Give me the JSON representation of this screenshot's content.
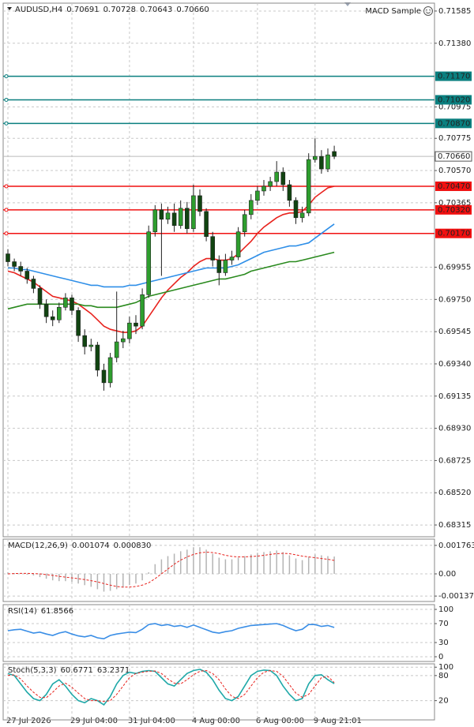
{
  "chart_data": [
    {
      "type": "candlestick",
      "symbol": "AUDUSD,H4",
      "readout": [
        "0.70691",
        "0.70728",
        "0.70643",
        "0.70660"
      ],
      "expert": "MACD Sample",
      "categories": [
        "27 Jul 2026",
        null,
        null,
        null,
        null,
        null,
        null,
        null,
        null,
        null,
        "29 Jul 04:00",
        null,
        null,
        null,
        null,
        null,
        null,
        null,
        null,
        "31 Jul 04:00",
        null,
        null,
        null,
        null,
        null,
        null,
        null,
        null,
        null,
        "4 Aug 00:00",
        null,
        null,
        null,
        null,
        null,
        null,
        null,
        null,
        null,
        "6 Aug 00:00",
        null,
        null,
        null,
        null,
        null,
        null,
        null,
        null,
        "9 Aug 21:01",
        null,
        null,
        null
      ],
      "open": [
        0.7004,
        0.6999,
        0.6996,
        0.6993,
        0.6988,
        0.6982,
        0.6972,
        0.6964,
        0.6962,
        0.697,
        0.6976,
        0.6968,
        0.6952,
        0.6945,
        0.6946,
        0.693,
        0.6922,
        0.6938,
        0.6948,
        0.695,
        0.696,
        0.6958,
        0.6978,
        0.7018,
        0.7032,
        0.7026,
        0.703,
        0.7022,
        0.7033,
        0.702,
        0.7041,
        0.7031,
        0.7015,
        0.7,
        0.6992,
        0.7,
        0.7002,
        0.7018,
        0.7029,
        0.7038,
        0.7044,
        0.7047,
        0.705,
        0.7056,
        0.7048,
        0.7038,
        0.7027,
        0.703,
        0.7064,
        0.7066,
        0.7058,
        0.70691
      ],
      "high": [
        0.7007,
        0.7001,
        0.6999,
        0.6995,
        0.699,
        0.6984,
        0.6975,
        0.6968,
        0.6973,
        0.6979,
        0.6978,
        0.697,
        0.6956,
        0.695,
        0.6948,
        0.6934,
        0.6941,
        0.698,
        0.6955,
        0.6964,
        0.6965,
        0.6982,
        0.7022,
        0.7035,
        0.7036,
        0.7034,
        0.7036,
        0.7038,
        0.7037,
        0.7048,
        0.7045,
        0.7033,
        0.7018,
        0.7003,
        0.7004,
        0.7006,
        0.7021,
        0.7032,
        0.7042,
        0.7047,
        0.7051,
        0.7053,
        0.7063,
        0.7059,
        0.7051,
        0.704,
        0.7034,
        0.7068,
        0.70775,
        0.707,
        0.7071,
        0.70728
      ],
      "low": [
        0.6996,
        0.6993,
        0.699,
        0.6985,
        0.6979,
        0.6969,
        0.696,
        0.6958,
        0.696,
        0.6968,
        0.6965,
        0.6948,
        0.694,
        0.6942,
        0.6926,
        0.6917,
        0.6919,
        0.6935,
        0.6944,
        0.6947,
        0.6953,
        0.6956,
        0.6976,
        0.7015,
        0.699,
        0.7023,
        0.7018,
        0.702,
        0.7017,
        0.7018,
        0.7028,
        0.7012,
        0.6996,
        0.6984,
        0.699,
        0.6997,
        0.7,
        0.7015,
        0.7026,
        0.7035,
        0.7041,
        0.7044,
        0.7047,
        0.7044,
        0.7034,
        0.7023,
        0.7024,
        0.7028,
        0.7062,
        0.7055,
        0.7056,
        0.70643
      ],
      "close": [
        0.6999,
        0.6996,
        0.6993,
        0.6988,
        0.6982,
        0.6972,
        0.6964,
        0.6962,
        0.697,
        0.6976,
        0.6968,
        0.6952,
        0.6945,
        0.6946,
        0.693,
        0.6922,
        0.6938,
        0.6948,
        0.695,
        0.696,
        0.6958,
        0.6978,
        0.7018,
        0.7032,
        0.7026,
        0.703,
        0.7022,
        0.7033,
        0.702,
        0.7041,
        0.7031,
        0.7015,
        0.7,
        0.6992,
        0.7,
        0.7002,
        0.7018,
        0.7029,
        0.7038,
        0.7044,
        0.7047,
        0.705,
        0.7056,
        0.7048,
        0.7038,
        0.7027,
        0.703,
        0.7064,
        0.7066,
        0.7058,
        0.7067,
        0.7066
      ],
      "up_color": "#2e9e2e",
      "down_color": "#114411",
      "series": [
        {
          "color": "#e8231e",
          "values": [
            0.6993,
            0.6992,
            0.699,
            0.6988,
            0.6986,
            0.6983,
            0.698,
            0.6977,
            0.6976,
            0.6975,
            0.6974,
            0.6972,
            0.6969,
            0.6966,
            0.6962,
            0.6958,
            0.6956,
            0.6955,
            0.6954,
            0.6954,
            0.6955,
            0.6958,
            0.6964,
            0.697,
            0.6976,
            0.6981,
            0.6985,
            0.6989,
            0.6992,
            0.6996,
            0.6999,
            0.7001,
            0.7001,
            0.7,
            0.7,
            0.7001,
            0.7004,
            0.7008,
            0.7012,
            0.7017,
            0.7021,
            0.7024,
            0.7027,
            0.7029,
            0.703,
            0.703,
            0.7031,
            0.7035,
            0.704,
            0.7043,
            0.7046,
            0.7047
          ]
        },
        {
          "color": "#2f8fe8",
          "values": [
            0.6995,
            0.6995,
            0.6994,
            0.6994,
            0.6993,
            0.6992,
            0.6991,
            0.699,
            0.6989,
            0.6988,
            0.6987,
            0.6986,
            0.6985,
            0.6984,
            0.6984,
            0.6983,
            0.6983,
            0.6983,
            0.6983,
            0.6984,
            0.6984,
            0.6985,
            0.6986,
            0.6987,
            0.6988,
            0.6989,
            0.699,
            0.6991,
            0.6992,
            0.6993,
            0.6994,
            0.6995,
            0.6995,
            0.6995,
            0.6995,
            0.6996,
            0.6997,
            0.6999,
            0.7001,
            0.7003,
            0.7005,
            0.7006,
            0.7007,
            0.7008,
            0.7009,
            0.7009,
            0.701,
            0.7011,
            0.7014,
            0.7017,
            0.702,
            0.7023
          ]
        },
        {
          "color": "#2a8a1e",
          "values": [
            0.6969,
            0.697,
            0.6971,
            0.6972,
            0.6972,
            0.6972,
            0.6972,
            0.6972,
            0.6972,
            0.6972,
            0.6972,
            0.6972,
            0.6971,
            0.6971,
            0.697,
            0.697,
            0.697,
            0.697,
            0.6971,
            0.6972,
            0.6973,
            0.6975,
            0.6977,
            0.6978,
            0.6979,
            0.698,
            0.6981,
            0.6982,
            0.6983,
            0.6984,
            0.6985,
            0.6986,
            0.6987,
            0.6988,
            0.6988,
            0.6989,
            0.699,
            0.6991,
            0.6993,
            0.6994,
            0.6995,
            0.6996,
            0.6997,
            0.6998,
            0.6999,
            0.6999,
            0.7,
            0.7001,
            0.7002,
            0.7003,
            0.7004,
            0.7005
          ]
        }
      ],
      "levels": [
        {
          "value": 0.7117,
          "label": "0.71170",
          "color": "#0a7f7f"
        },
        {
          "value": 0.7102,
          "label": "0.71020",
          "color": "#0a7f7f"
        },
        {
          "value": 0.7087,
          "label": "0.70870",
          "color": "#0a7f7f"
        },
        {
          "value": 0.7047,
          "label": "0.70470",
          "color": "#f01010"
        },
        {
          "value": 0.7032,
          "label": "0.70320",
          "color": "#f01010"
        },
        {
          "value": 0.7017,
          "label": "0.70170",
          "color": "#f01010"
        }
      ],
      "last_price": {
        "value": 0.7066,
        "label": "0.70660"
      },
      "ylim": [
        0.6824,
        0.71635
      ],
      "yticks": [
        0.71585,
        {
          "value": 0.7138,
          "label": "0.71380"
        },
        0.70975,
        0.70775,
        {
          "value": 0.7057,
          "label": "0.70570"
        },
        0.70365,
        0.69955,
        {
          "value": 0.6975,
          "label": "0.69750"
        },
        0.69545,
        {
          "value": 0.6934,
          "label": "0.69340"
        },
        0.69135,
        {
          "value": 0.6893,
          "label": "0.68930"
        },
        0.68725,
        {
          "value": 0.6852,
          "label": "0.68520"
        },
        0.68315
      ],
      "grid": true
    },
    {
      "type": "macd",
      "title": "MACD(12,26,9)",
      "readout": [
        "0.001074",
        "0.000830"
      ],
      "series": [
        {
          "color": "#b4b4b4",
          "style": "bar",
          "values": [
            0.0001,
            5e-05,
            0,
            -5e-05,
            -0.0001,
            -0.0002,
            -0.0003,
            -0.0004,
            -0.00045,
            -0.00045,
            -0.0005,
            -0.0006,
            -0.0007,
            -0.0008,
            -0.00095,
            -0.0011,
            -0.00105,
            -0.00095,
            -0.00085,
            -0.0007,
            -0.0006,
            -0.0004,
            0.0001,
            0.0006,
            0.0009,
            0.0011,
            0.00125,
            0.0014,
            0.0015,
            0.00165,
            0.00165,
            0.0015,
            0.00125,
            0.001,
            0.0009,
            0.0009,
            0.001,
            0.0011,
            0.0012,
            0.0013,
            0.00135,
            0.0014,
            0.00145,
            0.00135,
            0.00115,
            0.00095,
            0.00085,
            0.00105,
            0.0012,
            0.00115,
            0.0011,
            0.001074
          ]
        },
        {
          "color": "#e8231e",
          "style": "dashed",
          "values": [
            0,
            2e-05,
            3e-05,
            3e-05,
            2e-05,
            0,
            -5e-05,
            -0.0001,
            -0.00015,
            -0.0002,
            -0.00025,
            -0.0003,
            -0.00035,
            -0.00042,
            -0.0005,
            -0.0006,
            -0.0007,
            -0.00078,
            -0.00082,
            -0.00082,
            -0.00078,
            -0.0007,
            -0.00055,
            -0.0003,
            0,
            0.0003,
            0.0006,
            0.00085,
            0.00105,
            0.0012,
            0.0013,
            0.00135,
            0.00132,
            0.00125,
            0.00115,
            0.00108,
            0.00105,
            0.00105,
            0.00107,
            0.0011,
            0.00115,
            0.0012,
            0.00125,
            0.00127,
            0.00125,
            0.00118,
            0.0011,
            0.00105,
            0.001,
            0.00095,
            0.0009,
            0.00083
          ]
        }
      ],
      "ylim": [
        -0.00171,
        0.00215
      ],
      "yticks": [
        0.001763,
        {
          "value": 0,
          "label": "0.00"
        },
        -0.001374
      ],
      "grid": true
    },
    {
      "type": "line",
      "title": "RSI(14)",
      "readout": [
        "61.8566"
      ],
      "series": [
        {
          "color": "#3a8ee6",
          "style": "solid",
          "values": [
            55,
            57,
            58,
            54,
            50,
            52,
            48,
            45,
            50,
            53,
            48,
            44,
            42,
            45,
            40,
            38,
            45,
            48,
            50,
            52,
            51,
            58,
            68,
            70,
            66,
            68,
            64,
            66,
            62,
            67,
            62,
            57,
            52,
            50,
            53,
            55,
            60,
            63,
            66,
            67,
            68,
            69,
            70,
            66,
            60,
            55,
            58,
            68,
            68,
            64,
            66,
            61.8566
          ]
        }
      ],
      "ylim": [
        -10,
        110
      ],
      "yticks": [
        100,
        70,
        30,
        0
      ],
      "grid": true
    },
    {
      "type": "line",
      "title": "Stoch(5,3,3)",
      "readout": [
        "60.6771",
        "63.2371"
      ],
      "series": [
        {
          "color": "#1fa8a8",
          "style": "solid",
          "values": [
            85,
            80,
            60,
            40,
            25,
            20,
            35,
            60,
            70,
            55,
            35,
            20,
            15,
            25,
            20,
            10,
            30,
            60,
            80,
            88,
            85,
            90,
            92,
            90,
            75,
            60,
            55,
            70,
            85,
            92,
            95,
            88,
            70,
            45,
            25,
            20,
            30,
            55,
            80,
            90,
            93,
            92,
            80,
            55,
            35,
            20,
            25,
            60,
            80,
            82,
            70,
            60.6771
          ]
        },
        {
          "color": "#e8231e",
          "style": "dashed",
          "values": [
            80,
            82,
            72,
            55,
            40,
            28,
            27,
            40,
            55,
            62,
            52,
            38,
            25,
            20,
            20,
            18,
            20,
            35,
            55,
            75,
            85,
            88,
            90,
            91,
            85,
            72,
            62,
            60,
            70,
            82,
            90,
            92,
            85,
            70,
            48,
            30,
            25,
            35,
            55,
            75,
            88,
            92,
            90,
            78,
            58,
            38,
            28,
            35,
            55,
            75,
            78,
            63.2371
          ]
        }
      ],
      "ylim": [
        -26,
        108
      ],
      "yticks": [
        100,
        80,
        20
      ],
      "grid": true
    }
  ]
}
